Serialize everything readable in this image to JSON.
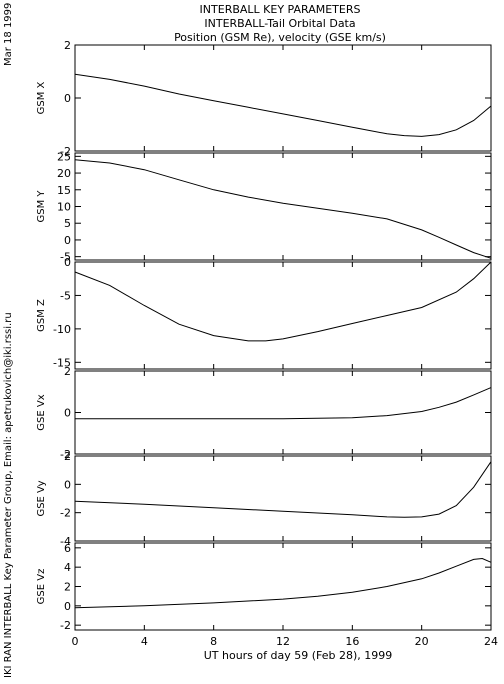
{
  "header": {
    "line1": "INTERBALL KEY PARAMETERS",
    "line2": "INTERBALL-Tail Orbital Data",
    "line3": "Position (GSM Re), velocity (GSE km/s)"
  },
  "side_date": "Mar 18 1999",
  "side_credit": "IKI RAN INTERBALL Key Parameter Group, Email: apetrukovich@iki.rssi.ru",
  "chart_data": {
    "type": "line",
    "xlabel": "UT hours of day  59 (Feb 28), 1999",
    "xlim": [
      0,
      24
    ],
    "xticks": [
      0,
      4,
      8,
      12,
      16,
      20,
      24
    ],
    "panels": [
      {
        "name": "GSM X",
        "ylabel": "GSM X",
        "ylim": [
          -2,
          2
        ],
        "yticks": [
          -2,
          0,
          2
        ],
        "x": [
          0,
          2,
          4,
          6,
          8,
          10,
          12,
          14,
          16,
          18,
          19,
          20,
          21,
          22,
          23,
          24
        ],
        "y": [
          0.9,
          0.7,
          0.45,
          0.15,
          -0.1,
          -0.35,
          -0.6,
          -0.85,
          -1.1,
          -1.35,
          -1.42,
          -1.45,
          -1.38,
          -1.2,
          -0.85,
          -0.3
        ]
      },
      {
        "name": "GSM Y",
        "ylabel": "GSM Y",
        "ylim": [
          -6,
          26
        ],
        "yticks": [
          -5,
          0,
          5,
          10,
          15,
          20,
          25
        ],
        "x": [
          0,
          2,
          4,
          6,
          8,
          10,
          12,
          14,
          16,
          18,
          20,
          21,
          22,
          23,
          24
        ],
        "y": [
          24,
          23,
          21,
          18,
          15,
          12.8,
          11,
          9.5,
          8,
          6.3,
          3,
          0.8,
          -1.5,
          -3.8,
          -5.5
        ]
      },
      {
        "name": "GSM Z",
        "ylabel": "GSM Z",
        "ylim": [
          -16,
          0
        ],
        "yticks": [
          -15,
          -10,
          -5,
          0
        ],
        "x": [
          0,
          2,
          4,
          6,
          8,
          10,
          11,
          12,
          14,
          16,
          18,
          20,
          22,
          23,
          24
        ],
        "y": [
          -1.5,
          -3.5,
          -6.5,
          -9.3,
          -11,
          -11.8,
          -11.8,
          -11.5,
          -10.4,
          -9.2,
          -8,
          -6.8,
          -4.5,
          -2.5,
          0
        ]
      },
      {
        "name": "GSE Vx",
        "ylabel": "GSE Vx",
        "ylim": [
          -2,
          2
        ],
        "yticks": [
          -2,
          0,
          2
        ],
        "x": [
          0,
          4,
          8,
          12,
          16,
          18,
          20,
          21,
          22,
          23,
          24
        ],
        "y": [
          -0.3,
          -0.3,
          -0.3,
          -0.3,
          -0.25,
          -0.15,
          0.05,
          0.25,
          0.5,
          0.85,
          1.2
        ]
      },
      {
        "name": "GSE Vy",
        "ylabel": "GSE Vy",
        "ylim": [
          -4,
          2
        ],
        "yticks": [
          -4,
          -2,
          0,
          2
        ],
        "x": [
          0,
          4,
          8,
          12,
          16,
          18,
          19,
          20,
          21,
          22,
          23,
          24
        ],
        "y": [
          -1.2,
          -1.4,
          -1.65,
          -1.9,
          -2.15,
          -2.3,
          -2.32,
          -2.3,
          -2.1,
          -1.5,
          -0.2,
          1.6
        ]
      },
      {
        "name": "GSE Vz",
        "ylabel": "GSE Vz",
        "ylim": [
          -2.5,
          6.5
        ],
        "yticks": [
          -2,
          0,
          2,
          4,
          6
        ],
        "x": [
          0,
          4,
          8,
          12,
          14,
          16,
          18,
          20,
          21,
          22,
          23,
          23.5,
          24
        ],
        "y": [
          -0.2,
          0,
          0.3,
          0.7,
          1.0,
          1.4,
          2.0,
          2.8,
          3.4,
          4.1,
          4.8,
          4.9,
          4.5
        ]
      }
    ]
  }
}
